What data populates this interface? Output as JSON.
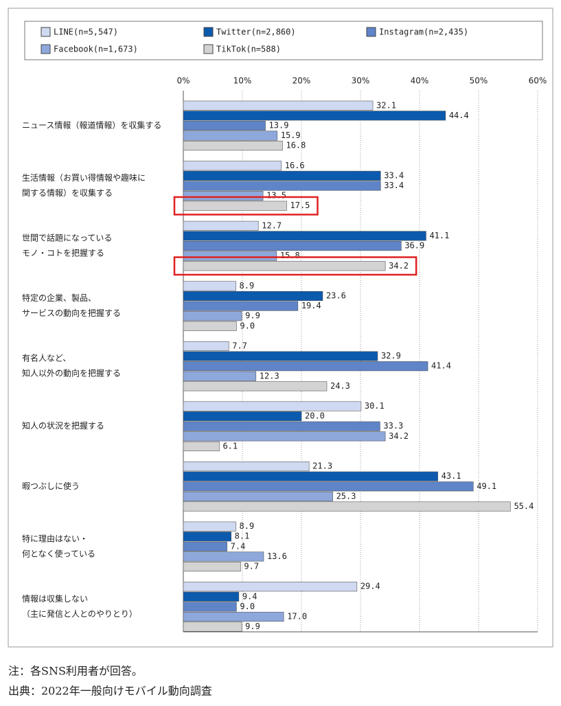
{
  "chart_data": {
    "type": "hbar",
    "categories": [
      [
        "ニュース情報（報道情報）を収集する"
      ],
      [
        "生活情報（お買い得情報や趣味に",
        "関する情報）を収集する"
      ],
      [
        "世間で話題になっている",
        "モノ・コトを把握する"
      ],
      [
        "特定の企業、製品、",
        "サービスの動向を把握する"
      ],
      [
        "有名人など、",
        "知人以外の動向を把握する"
      ],
      [
        "知人の状況を把握する"
      ],
      [
        "暇つぶしに使う"
      ],
      [
        "特に理由はない・",
        "何となく使っている"
      ],
      [
        "情報は収集しない",
        "（主に発信と人とのやりとり）"
      ]
    ],
    "series": [
      {
        "name": "LINE(n=5,547)",
        "color": "#cfd9f1",
        "values": [
          32.1,
          16.6,
          12.7,
          8.9,
          7.7,
          30.1,
          21.3,
          8.9,
          29.4
        ],
        "value_labels": [
          "32.1",
          "16.6",
          "12.7",
          "8.9",
          "7.7",
          "30.1",
          "21.3",
          "8.9",
          "29.4"
        ]
      },
      {
        "name": "Twitter(n=2,860)",
        "color": "#0b5aae",
        "values": [
          44.4,
          33.4,
          41.1,
          23.6,
          32.9,
          20.0,
          43.1,
          8.1,
          9.4
        ],
        "value_labels": [
          "44.4",
          "33.4",
          "41.1",
          "23.6",
          "32.9",
          "20.0",
          "43.1",
          "8.1",
          "9.4"
        ]
      },
      {
        "name": "Instagram(n=2,435)",
        "color": "#5f84c8",
        "values": [
          13.9,
          33.4,
          36.9,
          19.4,
          41.4,
          33.3,
          49.1,
          7.4,
          9.0
        ],
        "value_labels": [
          "13.9",
          "33.4",
          "36.9",
          "19.4",
          "41.4",
          "33.3",
          "49.1",
          "7.4",
          "9.0"
        ]
      },
      {
        "name": "Facebook(n=1,673)",
        "color": "#8ea8dc",
        "values": [
          15.9,
          13.5,
          15.8,
          9.9,
          12.3,
          34.2,
          25.3,
          13.6,
          17.0
        ],
        "value_labels": [
          "15.9",
          "13.5",
          "15.8",
          "9.9",
          "12.3",
          "34.2",
          "25.3",
          "13.6",
          "17.0"
        ]
      },
      {
        "name": "TikTok(n=588)",
        "color": "#d3d3d3",
        "values": [
          16.8,
          17.5,
          34.2,
          9.0,
          24.3,
          6.1,
          55.4,
          9.7,
          9.9
        ],
        "value_labels": [
          "16.8",
          "17.5",
          "34.2",
          "9.0",
          "24.3",
          "6.1",
          "55.4",
          "9.7",
          "9.9"
        ]
      }
    ],
    "xlim": [
      0,
      60
    ],
    "xticks": [
      {
        "value": 0,
        "label": "0%"
      },
      {
        "value": 10,
        "label": "10%"
      },
      {
        "value": 20,
        "label": "20%"
      },
      {
        "value": 30,
        "label": "30%"
      },
      {
        "value": 40,
        "label": "40%"
      },
      {
        "value": 50,
        "label": "50%"
      },
      {
        "value": 60,
        "label": "60%"
      }
    ],
    "grid": true,
    "notes": [
      "注：各SNS利用者が回答。",
      "出典：2022年一般向けモバイル動向調査"
    ]
  }
}
